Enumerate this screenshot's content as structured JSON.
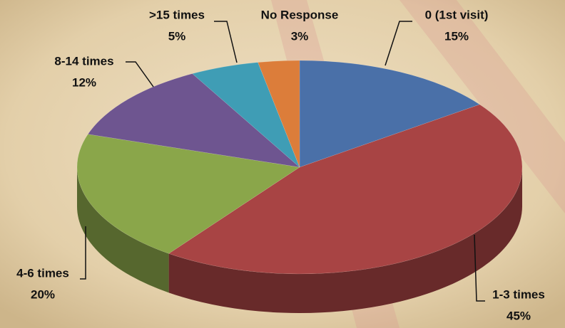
{
  "chart_data": {
    "type": "pie3d",
    "categories": [
      "0 (1st visit)",
      "1-3 times",
      "4-6 times",
      "8-14 times",
      ">15 times",
      "No Response"
    ],
    "values": [
      15,
      45,
      20,
      12,
      5,
      3
    ],
    "value_labels": [
      "15%",
      "45%",
      "20%",
      "12%",
      "5%",
      "3%"
    ],
    "colors": [
      "#4a70a8",
      "#a84444",
      "#8aa64a",
      "#6e5590",
      "#3f9db5",
      "#dc7d3a"
    ]
  }
}
